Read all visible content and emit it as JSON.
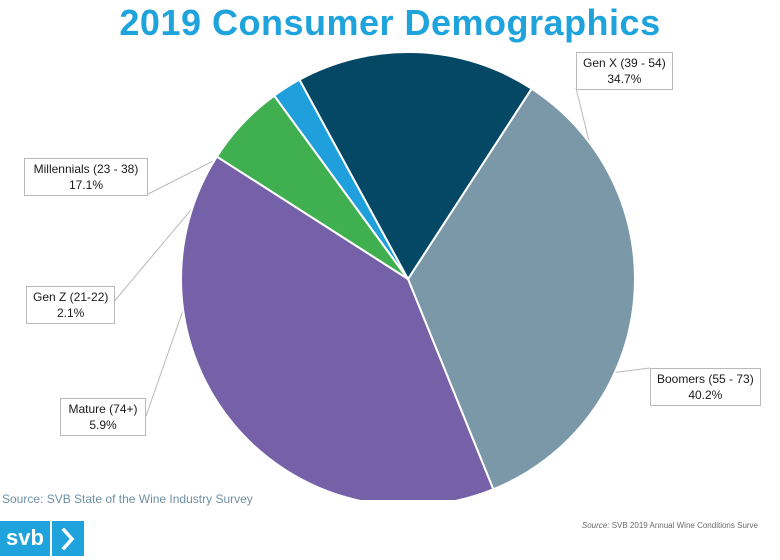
{
  "chart_data": {
    "type": "pie",
    "title": "2019 Consumer Demographics",
    "slices": [
      {
        "label": "Gen X (39 - 54)",
        "value": 34.7,
        "display": "34.7%",
        "color": "#7b98a9"
      },
      {
        "label": "Boomers (55 - 73)",
        "value": 40.2,
        "display": "40.2%",
        "color": "#7661a9"
      },
      {
        "label": "Mature (74+)",
        "value": 5.9,
        "display": "5.9%",
        "color": "#3faf4f"
      },
      {
        "label": "Gen Z (21-22)",
        "value": 2.1,
        "display": "2.1%",
        "color": "#1f9fdc"
      },
      {
        "label": "Millennials (23 - 38)",
        "value": 17.1,
        "display": "17.1%",
        "color": "#054866"
      }
    ],
    "start_angle_deg": -57
  },
  "footer": {
    "source_left": "Source: SVB State of the Wine Industry Survey",
    "source_right_prefix": "Source:",
    "source_right_text": "SVB 2019 Annual Wine Conditions Surve"
  },
  "logo": {
    "text": "svb",
    "arrow_icon": "chevron-right-icon"
  }
}
